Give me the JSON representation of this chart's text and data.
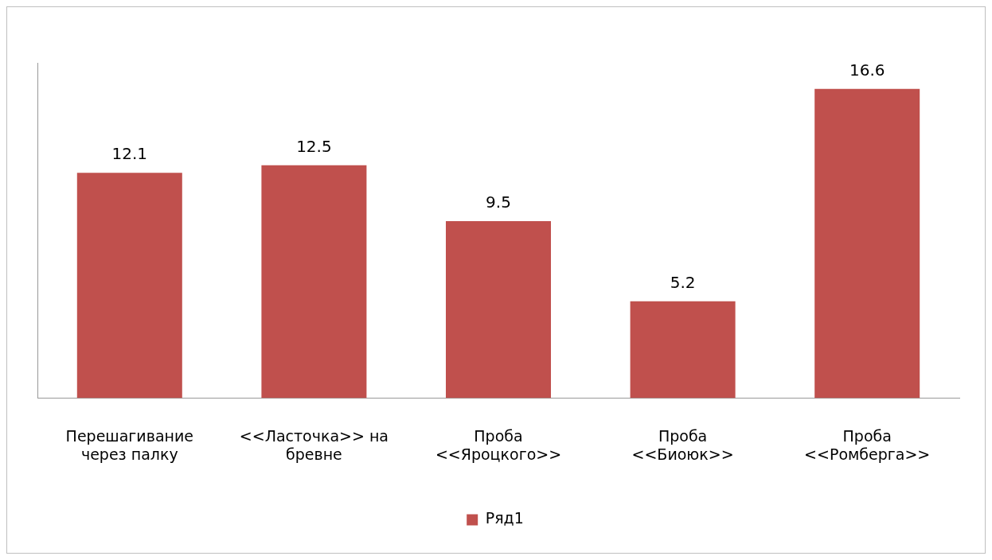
{
  "chart_data": {
    "type": "bar",
    "categories": [
      "Перешагивание\nчерез палку",
      "<<Ласточка>> на\nбревне",
      "Проба\n<<Яроцкого>>",
      "Проба\n<<Биоюк>>",
      "Проба\n<<Ромберга>>"
    ],
    "series": [
      {
        "name": "Ряд1",
        "color": "#c0504d",
        "values": [
          12.1,
          12.5,
          9.5,
          5.2,
          16.6
        ]
      }
    ],
    "data_labels": true,
    "legend": "bottom",
    "grid": false,
    "tick_labels": "x"
  }
}
